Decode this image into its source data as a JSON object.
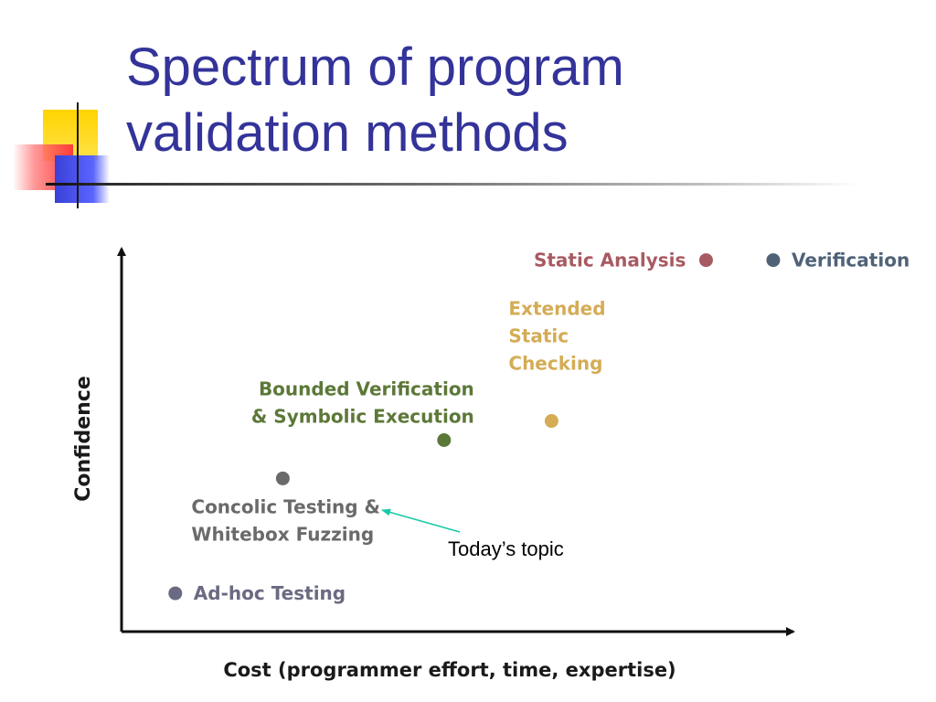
{
  "slide": {
    "title_line1": "Spectrum of program",
    "title_line2": "validation methods",
    "annotation": "Today’s topic"
  },
  "colors": {
    "title": "#33339a",
    "static_analysis": "#a85a62",
    "verification": "#4f6277",
    "extended_static": "#d4ac56",
    "bounded_verification": "#5c7838",
    "concolic": "#6a6a6a",
    "adhoc": "#6a6a82",
    "annotation_arrow": "#18c9a8"
  },
  "chart_data": {
    "type": "scatter",
    "title": "Spectrum of program validation methods",
    "xlabel": "Cost (programmer effort, time, expertise)",
    "ylabel": "Confidence",
    "xlim": [
      0,
      100
    ],
    "ylim": [
      0,
      100
    ],
    "grid": false,
    "points": [
      {
        "name": "Ad-hoc Testing",
        "label_lines": [
          "Ad-hoc Testing"
        ],
        "x": 8,
        "y": 10,
        "color": "#6a6a82",
        "label_pos": "right"
      },
      {
        "name": "Concolic Testing & Whitebox Fuzzing",
        "label_lines": [
          "Concolic Testing &",
          "Whitebox Fuzzing"
        ],
        "x": 24,
        "y": 40,
        "color": "#6a6a6a",
        "label_pos": "below"
      },
      {
        "name": "Bounded Verification & Symbolic Execution",
        "label_lines": [
          "Bounded Verification",
          "& Symbolic Execution"
        ],
        "x": 48,
        "y": 50,
        "color": "#5c7838",
        "label_pos": "above-left"
      },
      {
        "name": "Extended Static Checking",
        "label_lines": [
          "Extended",
          "Static",
          "Checking"
        ],
        "x": 64,
        "y": 55,
        "color": "#d4ac56",
        "label_pos": "above"
      },
      {
        "name": "Static Analysis",
        "label_lines": [
          "Static Analysis"
        ],
        "x": 87,
        "y": 97,
        "color": "#a85a62",
        "label_pos": "left"
      },
      {
        "name": "Verification",
        "label_lines": [
          "Verification"
        ],
        "x": 97,
        "y": 97,
        "color": "#4f6277",
        "label_pos": "right"
      }
    ],
    "annotations": [
      {
        "text": "Today’s topic",
        "points_to": "Concolic Testing & Whitebox Fuzzing"
      }
    ]
  }
}
